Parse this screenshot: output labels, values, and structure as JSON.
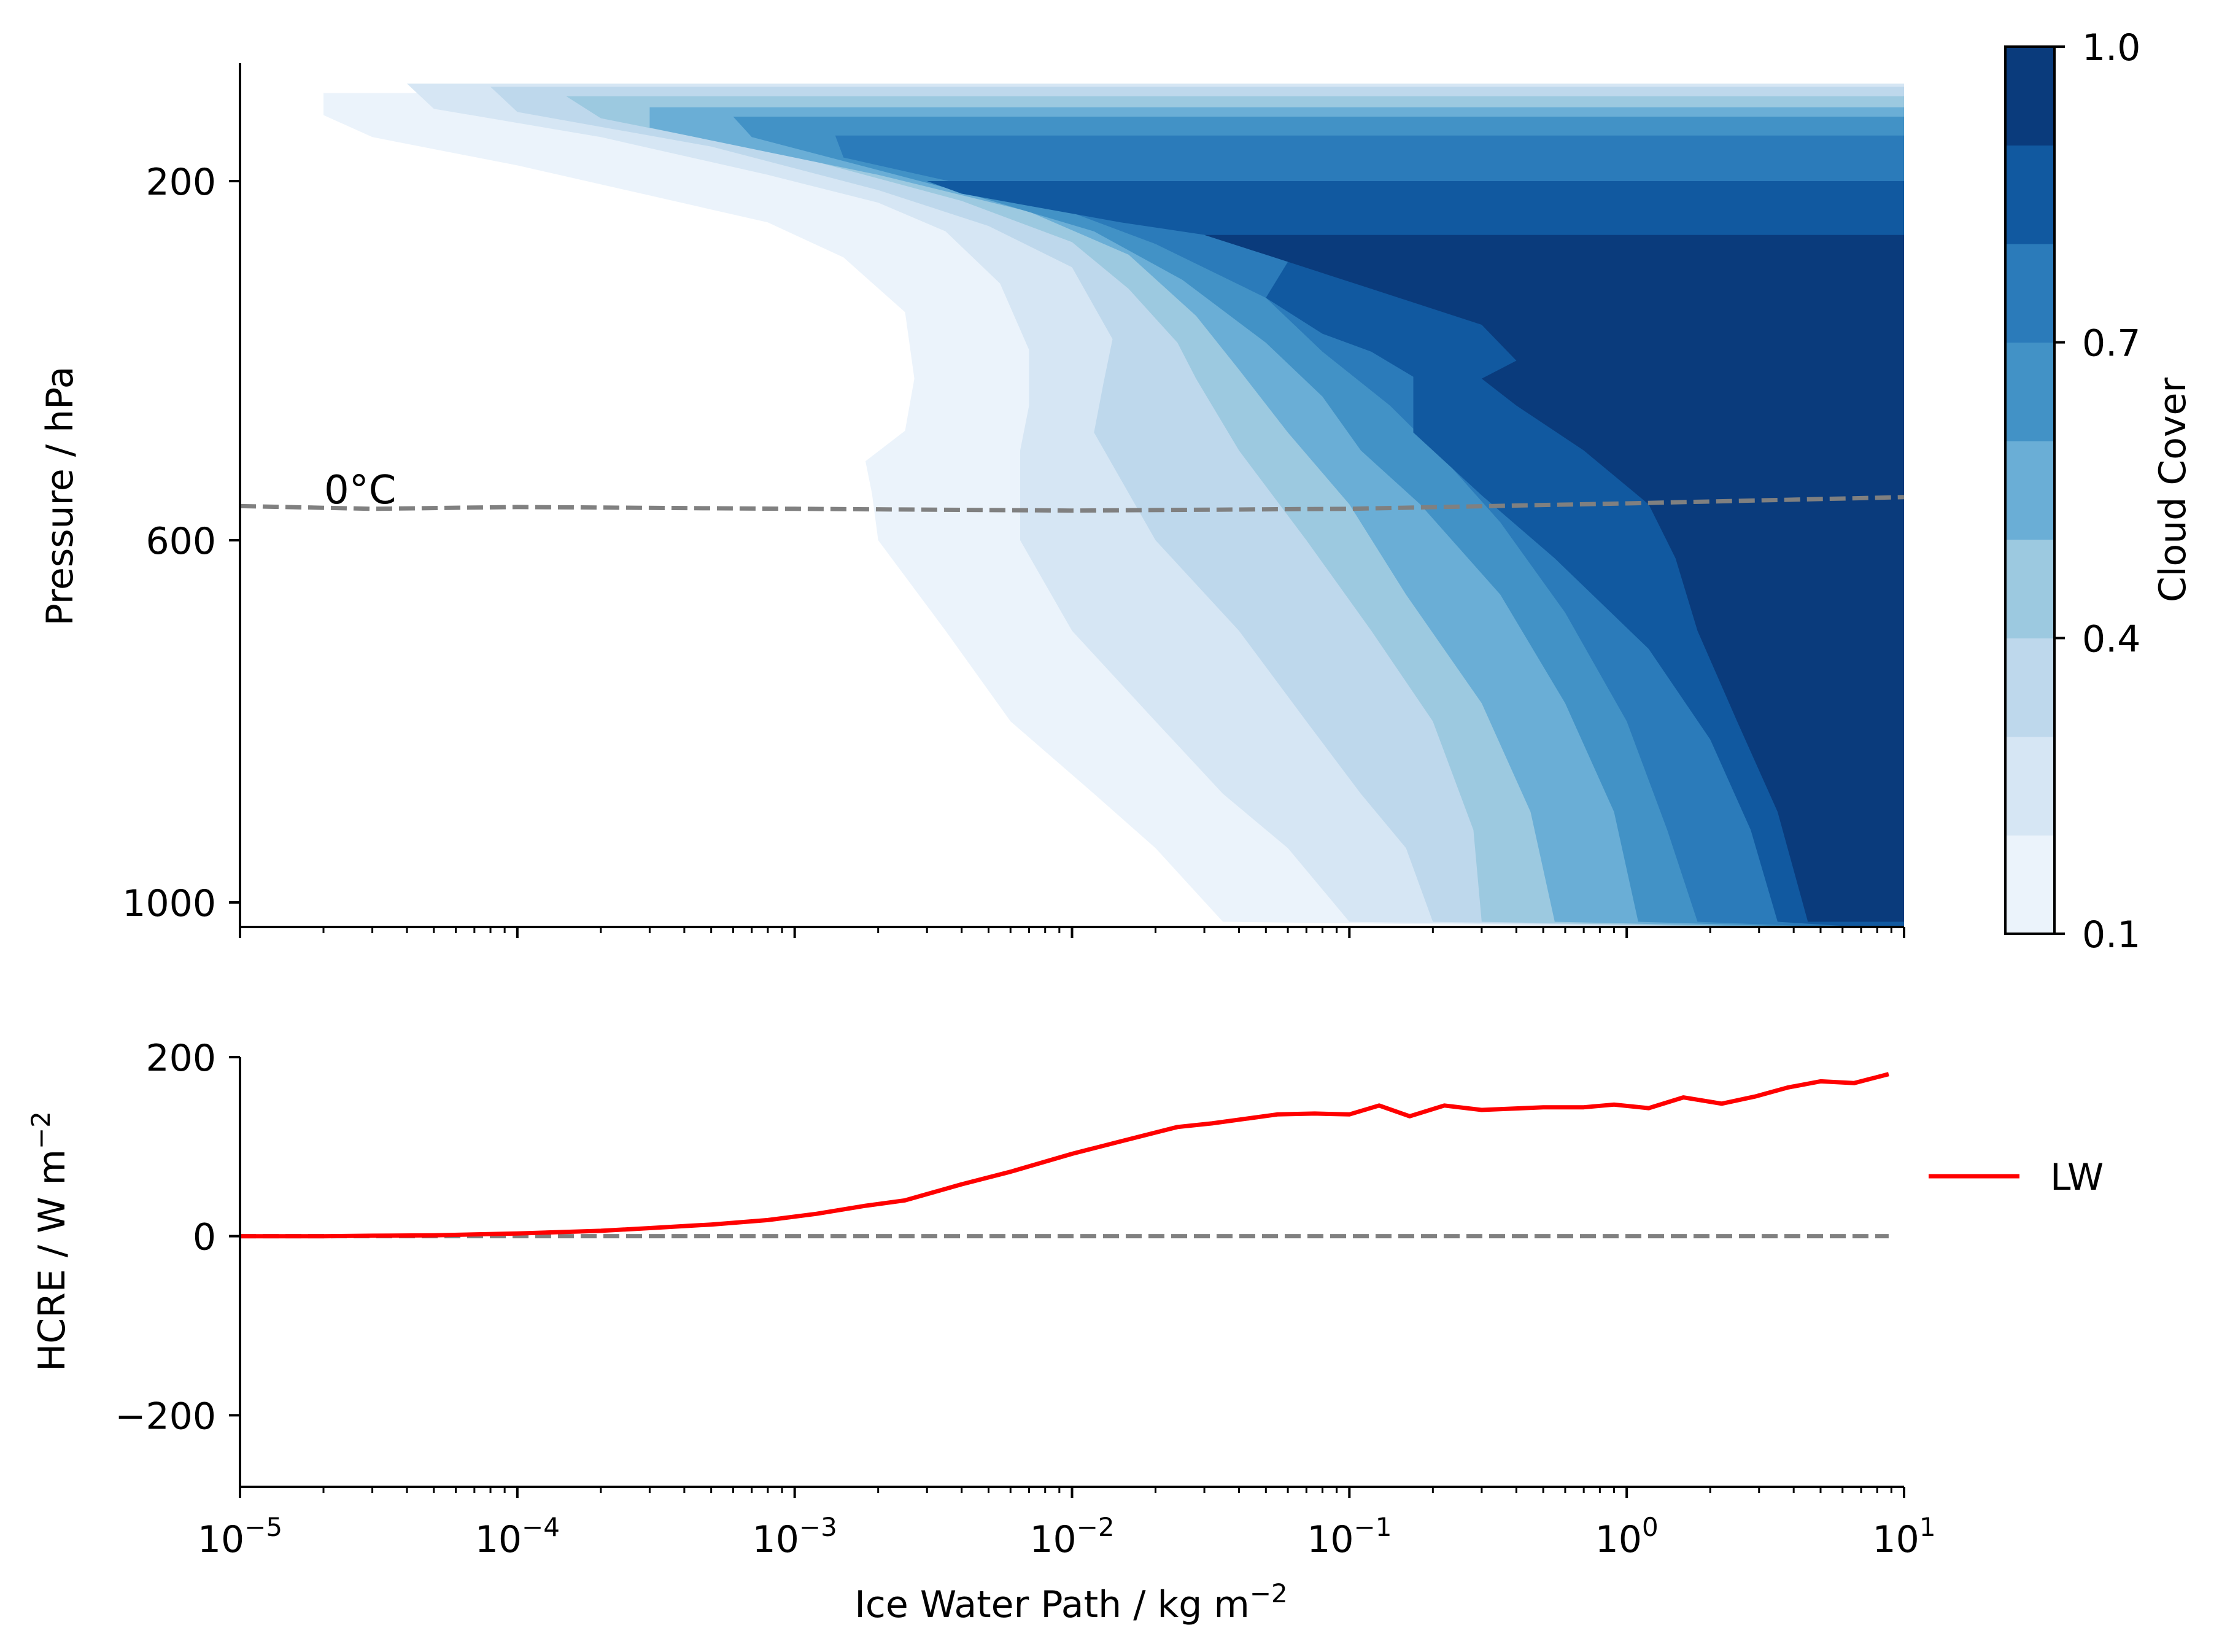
{
  "colors": {
    "cloud_levels": [
      "#ebf3fb",
      "#d6e6f4",
      "#bed8ec",
      "#9cc9e0",
      "#6aaed6",
      "#4292c6",
      "#2b7bba",
      "#1159a0",
      "#0a3b7c"
    ],
    "freezing_line": "#808080",
    "zero_line": "#808080",
    "lw_line": "#ff0000",
    "axis": "#000000"
  },
  "chart_data": [
    {
      "type": "heatmap",
      "subtype": "filled-contour",
      "xlabel": "",
      "ylabel": "Pressure / hPa",
      "x_scale": "log",
      "y_direction": "inverted",
      "xlim": [
        1e-05,
        10
      ],
      "ylim": [
        1040,
        125
      ],
      "yticks": [
        {
          "value": 200,
          "label": "200"
        },
        {
          "value": 600,
          "label": "600"
        },
        {
          "value": 1000,
          "label": "1000"
        }
      ],
      "contour_levels": [
        0.1,
        0.2,
        0.3,
        0.4,
        0.5,
        0.6,
        0.7,
        0.8,
        0.9,
        1.0
      ],
      "cloud_boundaries": [
        {
          "level": 0.1,
          "x": [
            2e-05,
            2e-05,
            3e-05,
            0.0001,
            0.0003,
            0.0008,
            0.0015,
            0.0025,
            0.0027,
            0.0025,
            0.0018,
            0.0019,
            0.002,
            0.0035,
            0.006,
            0.012,
            0.02,
            0.035
          ],
          "y": [
            144,
            158,
            172,
            190,
            216,
            246,
            285,
            346,
            420,
            478,
            512,
            548,
            600,
            700,
            800,
            880,
            940,
            1030
          ]
        },
        {
          "level": 0.2,
          "x": [
            4e-05,
            5e-05,
            0.0002,
            0.0008,
            0.002,
            0.0035,
            0.0055,
            0.007,
            0.007,
            0.0065,
            0.0065,
            0.01,
            0.02,
            0.035,
            0.06,
            0.1
          ],
          "y": [
            138,
            154,
            172,
            196,
            224,
            256,
            314,
            388,
            450,
            500,
            600,
            700,
            800,
            880,
            940,
            1030
          ]
        },
        {
          "level": 0.3,
          "x": [
            8e-05,
            0.0001,
            0.0005,
            0.002,
            0.005,
            0.01,
            0.014,
            0.013,
            0.012,
            0.02,
            0.04,
            0.07,
            0.11,
            0.16,
            0.2
          ],
          "y": [
            140,
            156,
            178,
            210,
            250,
            296,
            376,
            424,
            480,
            600,
            700,
            800,
            880,
            940,
            1030
          ]
        },
        {
          "level": 0.4,
          "x": [
            0.00015,
            0.0002,
            0.0011,
            0.004,
            0.01,
            0.016,
            0.024,
            0.028,
            0.04,
            0.07,
            0.12,
            0.2,
            0.28,
            0.3
          ],
          "y": [
            146,
            160,
            186,
            222,
            268,
            320,
            380,
            420,
            500,
            600,
            700,
            800,
            920,
            1030
          ]
        },
        {
          "level": 0.5,
          "x": [
            0.0003,
            0.0003,
            0.002,
            0.007,
            0.016,
            0.028,
            0.04,
            0.06,
            0.1,
            0.16,
            0.3,
            0.45,
            0.55
          ],
          "y": [
            153,
            166,
            196,
            234,
            282,
            350,
            410,
            480,
            560,
            660,
            780,
            900,
            1030
          ]
        },
        {
          "level": 0.6,
          "x": [
            0.0006,
            0.0007,
            0.004,
            0.012,
            0.025,
            0.05,
            0.08,
            0.11,
            0.18,
            0.35,
            0.6,
            0.9,
            1.1
          ],
          "y": [
            159,
            172,
            212,
            256,
            310,
            380,
            440,
            500,
            560,
            660,
            780,
            900,
            1030
          ]
        },
        {
          "level": 0.7,
          "x": [
            0.0014,
            0.0015,
            0.008,
            0.02,
            0.05,
            0.08,
            0.14,
            0.22,
            0.35,
            0.6,
            1.0,
            1.4,
            1.8
          ],
          "y": [
            171,
            185,
            224,
            270,
            330,
            390,
            450,
            510,
            580,
            680,
            800,
            920,
            1030
          ]
        },
        {
          "level": 0.8,
          "x": [
            0.003,
            0.004,
            0.015,
            0.05,
            0.06,
            0.05,
            0.08,
            0.12,
            0.17,
            0.17,
            0.3,
            0.55,
            1.2,
            2.0,
            2.8,
            3.5
          ],
          "y": [
            200,
            214,
            246,
            270,
            290,
            330,
            370,
            390,
            418,
            480,
            550,
            620,
            720,
            820,
            920,
            1030
          ]
        },
        {
          "level": 0.9,
          "x": [
            0.03,
            0.05,
            0.12,
            0.3,
            0.4,
            0.3,
            0.4,
            0.7,
            1.2,
            1.5,
            1.8,
            2.5,
            3.5,
            4.5,
            5.0,
            6.0,
            8.0,
            10.0
          ],
          "y": [
            260,
            282,
            320,
            360,
            400,
            420,
            450,
            500,
            560,
            620,
            700,
            800,
            900,
            1030,
            1030,
            1030,
            1030,
            1030
          ]
        }
      ],
      "freezing_level": {
        "label": "0°C",
        "x": [
          1e-05,
          3e-05,
          0.0001,
          0.001,
          0.01,
          0.1,
          1,
          10
        ],
        "y": [
          562,
          565,
          563,
          565,
          567,
          565,
          559,
          552
        ]
      }
    },
    {
      "type": "line",
      "xlabel": "Ice Water Path / kg m",
      "xlabel_superscript": "−2",
      "ylabel": "HCRE / W m",
      "ylabel_superscript": "−2",
      "x_scale": "log",
      "xlim": [
        1e-05,
        10
      ],
      "ylim": [
        -280,
        200
      ],
      "xticks": [
        {
          "value": 1e-05,
          "base": "10",
          "exp": "−5"
        },
        {
          "value": 0.0001,
          "base": "10",
          "exp": "−4"
        },
        {
          "value": 0.001,
          "base": "10",
          "exp": "−3"
        },
        {
          "value": 0.01,
          "base": "10",
          "exp": "−2"
        },
        {
          "value": 0.1,
          "base": "10",
          "exp": "−1"
        },
        {
          "value": 1,
          "base": "10",
          "exp": "0"
        },
        {
          "value": 10,
          "base": "10",
          "exp": "1"
        }
      ],
      "yticks": [
        {
          "value": 200,
          "label": "200"
        },
        {
          "value": 0,
          "label": "0"
        },
        {
          "value": -200,
          "label": "−200"
        }
      ],
      "reference_line": {
        "y": 0
      },
      "series": [
        {
          "name": "LW",
          "x": [
            1e-05,
            2e-05,
            3e-05,
            5e-05,
            0.0001,
            0.0002,
            0.0003,
            0.0005,
            0.0008,
            0.0012,
            0.0018,
            0.0025,
            0.004,
            0.006,
            0.01,
            0.015,
            0.024,
            0.032,
            0.055,
            0.075,
            0.1,
            0.128,
            0.165,
            0.22,
            0.3,
            0.5,
            0.7,
            0.9,
            1.2,
            1.6,
            2.2,
            2.9,
            3.8,
            5.0,
            6.6,
            8.8
          ],
          "y": [
            0,
            0,
            0.5,
            1,
            3,
            6,
            9,
            13,
            18,
            25,
            34,
            40,
            58,
            72,
            92,
            106,
            122,
            126,
            136,
            137,
            136,
            146,
            134,
            146,
            141,
            144,
            144,
            147,
            143,
            155,
            148,
            156,
            166,
            173,
            171,
            181
          ]
        }
      ],
      "legend": {
        "placement": "right",
        "entries": [
          "LW"
        ]
      }
    }
  ],
  "colorbar": {
    "label": "Cloud Cover",
    "range": [
      0.1,
      1.0
    ],
    "levels": [
      0.1,
      0.2,
      0.3,
      0.4,
      0.5,
      0.6,
      0.7,
      0.8,
      0.9,
      1.0
    ],
    "ticks": [
      {
        "value": 0.1,
        "label": "0.1"
      },
      {
        "value": 0.4,
        "label": "0.4"
      },
      {
        "value": 0.7,
        "label": "0.7"
      },
      {
        "value": 1.0,
        "label": "1.0"
      }
    ]
  }
}
